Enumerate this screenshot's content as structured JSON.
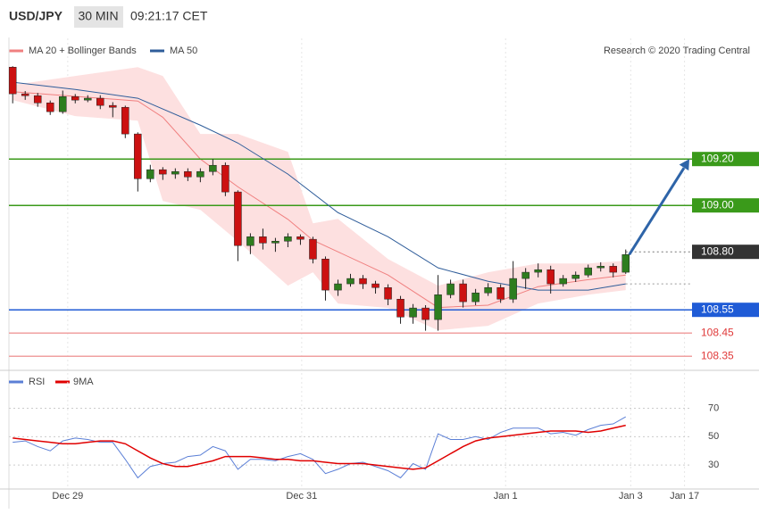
{
  "header": {
    "symbol": "USD/JPY",
    "interval": "30 MIN",
    "time": "09:21:17 CET"
  },
  "chart_data": [
    {
      "type": "candlestick",
      "source": "Research © 2020 Trading Central",
      "ylim": [
        108.31,
        109.72
      ],
      "xlim": [
        -0.3,
        54.3
      ],
      "xticks": [
        {
          "value": 4.4,
          "label": "Dec 29"
        },
        {
          "value": 23.1,
          "label": "Dec 31"
        },
        {
          "value": 39.4,
          "label": "Jan 1"
        },
        {
          "value": 49.4,
          "label": "Jan 3"
        },
        {
          "value": 53.7,
          "label": "Jan 17"
        }
      ],
      "up_color": "#2e7d1e",
      "down_color": "#cc1111",
      "ohlc": [
        [
          109.596,
          109.6,
          109.44,
          109.481
        ],
        [
          109.481,
          109.493,
          109.455,
          109.473
        ],
        [
          109.473,
          109.485,
          109.425,
          109.442
        ],
        [
          109.442,
          109.452,
          109.39,
          109.404
        ],
        [
          109.404,
          109.495,
          109.395,
          109.469
        ],
        [
          109.469,
          109.48,
          109.44,
          109.454
        ],
        [
          109.454,
          109.475,
          109.445,
          109.462
        ],
        [
          109.462,
          109.475,
          109.415,
          109.431
        ],
        [
          109.431,
          109.445,
          109.38,
          109.423
        ],
        [
          109.423,
          109.43,
          109.29,
          109.308
        ],
        [
          109.308,
          109.315,
          109.06,
          109.115
        ],
        [
          109.115,
          109.175,
          109.1,
          109.154
        ],
        [
          109.154,
          109.165,
          109.11,
          109.135
        ],
        [
          109.135,
          109.16,
          109.115,
          109.146
        ],
        [
          109.146,
          109.16,
          109.105,
          109.123
        ],
        [
          109.123,
          109.16,
          109.1,
          109.146
        ],
        [
          109.146,
          109.2,
          109.13,
          109.173
        ],
        [
          109.173,
          109.185,
          109.04,
          109.058
        ],
        [
          109.058,
          109.065,
          108.76,
          108.827
        ],
        [
          108.827,
          108.88,
          108.79,
          108.865
        ],
        [
          108.865,
          108.9,
          108.81,
          108.838
        ],
        [
          108.838,
          108.86,
          108.8,
          108.846
        ],
        [
          108.846,
          108.88,
          108.82,
          108.865
        ],
        [
          108.865,
          108.875,
          108.83,
          108.854
        ],
        [
          108.854,
          108.865,
          108.75,
          108.769
        ],
        [
          108.769,
          108.78,
          108.59,
          108.635
        ],
        [
          108.635,
          108.68,
          108.61,
          108.662
        ],
        [
          108.662,
          108.705,
          108.65,
          108.685
        ],
        [
          108.685,
          108.7,
          108.64,
          108.662
        ],
        [
          108.662,
          108.675,
          108.62,
          108.646
        ],
        [
          108.646,
          108.66,
          108.57,
          108.596
        ],
        [
          108.596,
          108.61,
          108.49,
          108.519
        ],
        [
          108.519,
          108.575,
          108.49,
          108.558
        ],
        [
          108.558,
          108.57,
          108.46,
          108.508
        ],
        [
          108.508,
          108.7,
          108.46,
          108.615
        ],
        [
          108.615,
          108.68,
          108.6,
          108.662
        ],
        [
          108.662,
          108.68,
          108.56,
          108.585
        ],
        [
          108.585,
          108.64,
          108.57,
          108.623
        ],
        [
          108.623,
          108.665,
          108.61,
          108.646
        ],
        [
          108.646,
          108.66,
          108.58,
          108.596
        ],
        [
          108.596,
          108.76,
          108.58,
          108.685
        ],
        [
          108.685,
          108.73,
          108.64,
          108.712
        ],
        [
          108.712,
          108.75,
          108.69,
          108.723
        ],
        [
          108.723,
          108.74,
          108.62,
          108.662
        ],
        [
          108.662,
          108.7,
          108.65,
          108.685
        ],
        [
          108.685,
          108.715,
          108.67,
          108.7
        ],
        [
          108.7,
          108.745,
          108.69,
          108.731
        ],
        [
          108.731,
          108.755,
          108.715,
          108.738
        ],
        [
          108.738,
          108.75,
          108.69,
          108.712
        ],
        [
          108.712,
          108.81,
          108.705,
          108.788
        ]
      ],
      "bollinger": {
        "name": "MA 20 + Bollinger Bands",
        "color": "#f08080",
        "fill": "#fde0e0",
        "x": [
          0,
          5,
          10,
          12,
          15,
          18,
          22,
          24,
          26,
          30,
          34,
          38,
          42,
          46,
          49
        ],
        "upper": [
          109.519,
          109.558,
          109.596,
          109.558,
          109.308,
          109.308,
          109.231,
          108.923,
          108.942,
          108.769,
          108.654,
          108.712,
          108.75,
          108.75,
          108.762
        ],
        "lower": [
          109.454,
          109.385,
          109.365,
          109.019,
          108.981,
          108.846,
          108.654,
          108.712,
          108.577,
          108.558,
          108.462,
          108.481,
          108.577,
          108.615,
          108.635
        ],
        "values": [
          109.49,
          109.47,
          109.45,
          109.38,
          109.2,
          109.08,
          108.94,
          108.85,
          108.8,
          108.7,
          108.56,
          108.57,
          108.65,
          108.68,
          108.7
        ]
      },
      "ma50": {
        "name": "MA 50",
        "color": "#2f5d9a",
        "x": [
          0,
          5,
          10,
          15,
          18,
          22,
          26,
          30,
          34,
          38,
          42,
          46,
          49
        ],
        "values": [
          109.531,
          109.5,
          109.462,
          109.346,
          109.269,
          109.135,
          108.969,
          108.865,
          108.731,
          108.673,
          108.635,
          108.635,
          108.662
        ]
      },
      "levels": [
        {
          "value": 109.2,
          "label": "109.20",
          "color": "#3a9a1a",
          "style": "solid",
          "box": "#3a9a1a"
        },
        {
          "value": 109.0,
          "label": "109.00",
          "color": "#3a9a1a",
          "style": "solid",
          "box": "#3a9a1a"
        },
        {
          "value": 108.8,
          "label": "108.80",
          "color": "#777",
          "style": "dotted",
          "box": "#333"
        },
        {
          "value": 108.662,
          "color": "#999",
          "style": "dotted"
        },
        {
          "value": 108.55,
          "label": "108.55",
          "color": "#1f5bd6",
          "style": "solid",
          "box": "#1f5bd6"
        },
        {
          "value": 108.45,
          "label": "108.45",
          "color": "#f0a0a0",
          "style": "solid",
          "text": "#e03a3a"
        },
        {
          "value": 108.35,
          "label": "108.35",
          "color": "#f0a0a0",
          "style": "solid",
          "text": "#e03a3a"
        }
      ],
      "arrow_color": "#2e64a8"
    },
    {
      "type": "line",
      "ylim": [
        15,
        81
      ],
      "yticks": [
        30,
        50,
        70
      ],
      "grid": true,
      "series": [
        {
          "name": "RSI",
          "color": "#5b7fd6",
          "values": [
            46,
            47,
            43,
            40,
            47,
            49,
            48,
            46,
            46,
            34,
            21,
            29,
            31,
            32,
            36,
            37,
            43,
            40,
            27,
            34,
            34,
            33,
            36,
            38,
            34,
            24,
            27,
            31,
            32,
            29,
            26,
            21,
            31,
            27,
            52,
            48,
            48,
            50,
            48,
            53,
            56,
            56,
            56,
            52,
            53,
            51,
            55,
            58,
            59,
            64
          ]
        },
        {
          "name": "9MA",
          "color": "#e00000",
          "values": [
            49,
            48,
            47,
            46,
            45,
            45,
            46,
            47,
            47,
            45,
            40,
            35,
            31,
            29,
            29,
            31,
            33,
            36,
            36,
            36,
            35,
            34,
            34,
            33,
            33,
            32,
            31,
            31,
            31,
            30,
            29,
            28,
            27,
            28,
            33,
            38,
            43,
            47,
            49,
            50,
            51,
            52,
            53,
            54,
            54,
            54,
            53,
            54,
            56,
            58
          ]
        }
      ]
    }
  ]
}
